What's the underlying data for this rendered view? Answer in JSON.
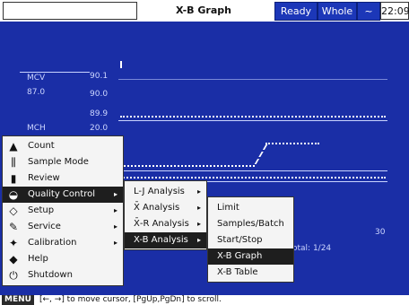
{
  "header": {
    "title": "X-B Graph",
    "status_ready": "Ready",
    "status_whole": "Whole",
    "wave_icon": "~",
    "time": "22:09"
  },
  "graph": {
    "row1": {
      "label": "MCV",
      "value": "87.0",
      "upper": "90.1",
      "mid": "90.0",
      "lower": "89.9"
    },
    "row2": {
      "label": "MCH",
      "upper": "20.0"
    },
    "x_end": "30",
    "total": "otal: 1/24"
  },
  "main_menu": {
    "items": [
      {
        "label": "Count",
        "icon": "count-icon",
        "glyph": "▲"
      },
      {
        "label": "Sample Mode",
        "icon": "sample-mode-icon",
        "glyph": "⫼"
      },
      {
        "label": "Review",
        "icon": "review-icon",
        "glyph": "▮"
      },
      {
        "label": "Quality Control",
        "icon": "quality-control-icon",
        "glyph": "◒",
        "arrow": "▸"
      },
      {
        "label": "Setup",
        "icon": "setup-icon",
        "glyph": "◇",
        "arrow": "▸"
      },
      {
        "label": "Service",
        "icon": "service-icon",
        "glyph": "✎",
        "arrow": "▸"
      },
      {
        "label": "Calibration",
        "icon": "calibration-icon",
        "glyph": "✦",
        "arrow": "▸"
      },
      {
        "label": "Help",
        "icon": "help-icon",
        "glyph": "◆"
      },
      {
        "label": "Shutdown",
        "icon": "shutdown-icon",
        "glyph": "⏻"
      }
    ]
  },
  "qc_menu": {
    "items": [
      {
        "label": "L-J Analysis",
        "arrow": "▸"
      },
      {
        "label": "X̄ Analysis",
        "arrow": "▸"
      },
      {
        "label": "X̄-R Analysis",
        "arrow": "▸"
      },
      {
        "label": "X-B Analysis",
        "arrow": "▸"
      }
    ]
  },
  "xb_menu": {
    "items": [
      {
        "label": "Limit"
      },
      {
        "label": "Samples/Batch"
      },
      {
        "label": "Start/Stop"
      },
      {
        "label": "X-B Graph"
      },
      {
        "label": "X-B Table"
      }
    ]
  },
  "statusbar": {
    "menu_tag": "MENU",
    "hint": "[←, →] to move cursor, [PgUp,PgDn] to scroll."
  }
}
